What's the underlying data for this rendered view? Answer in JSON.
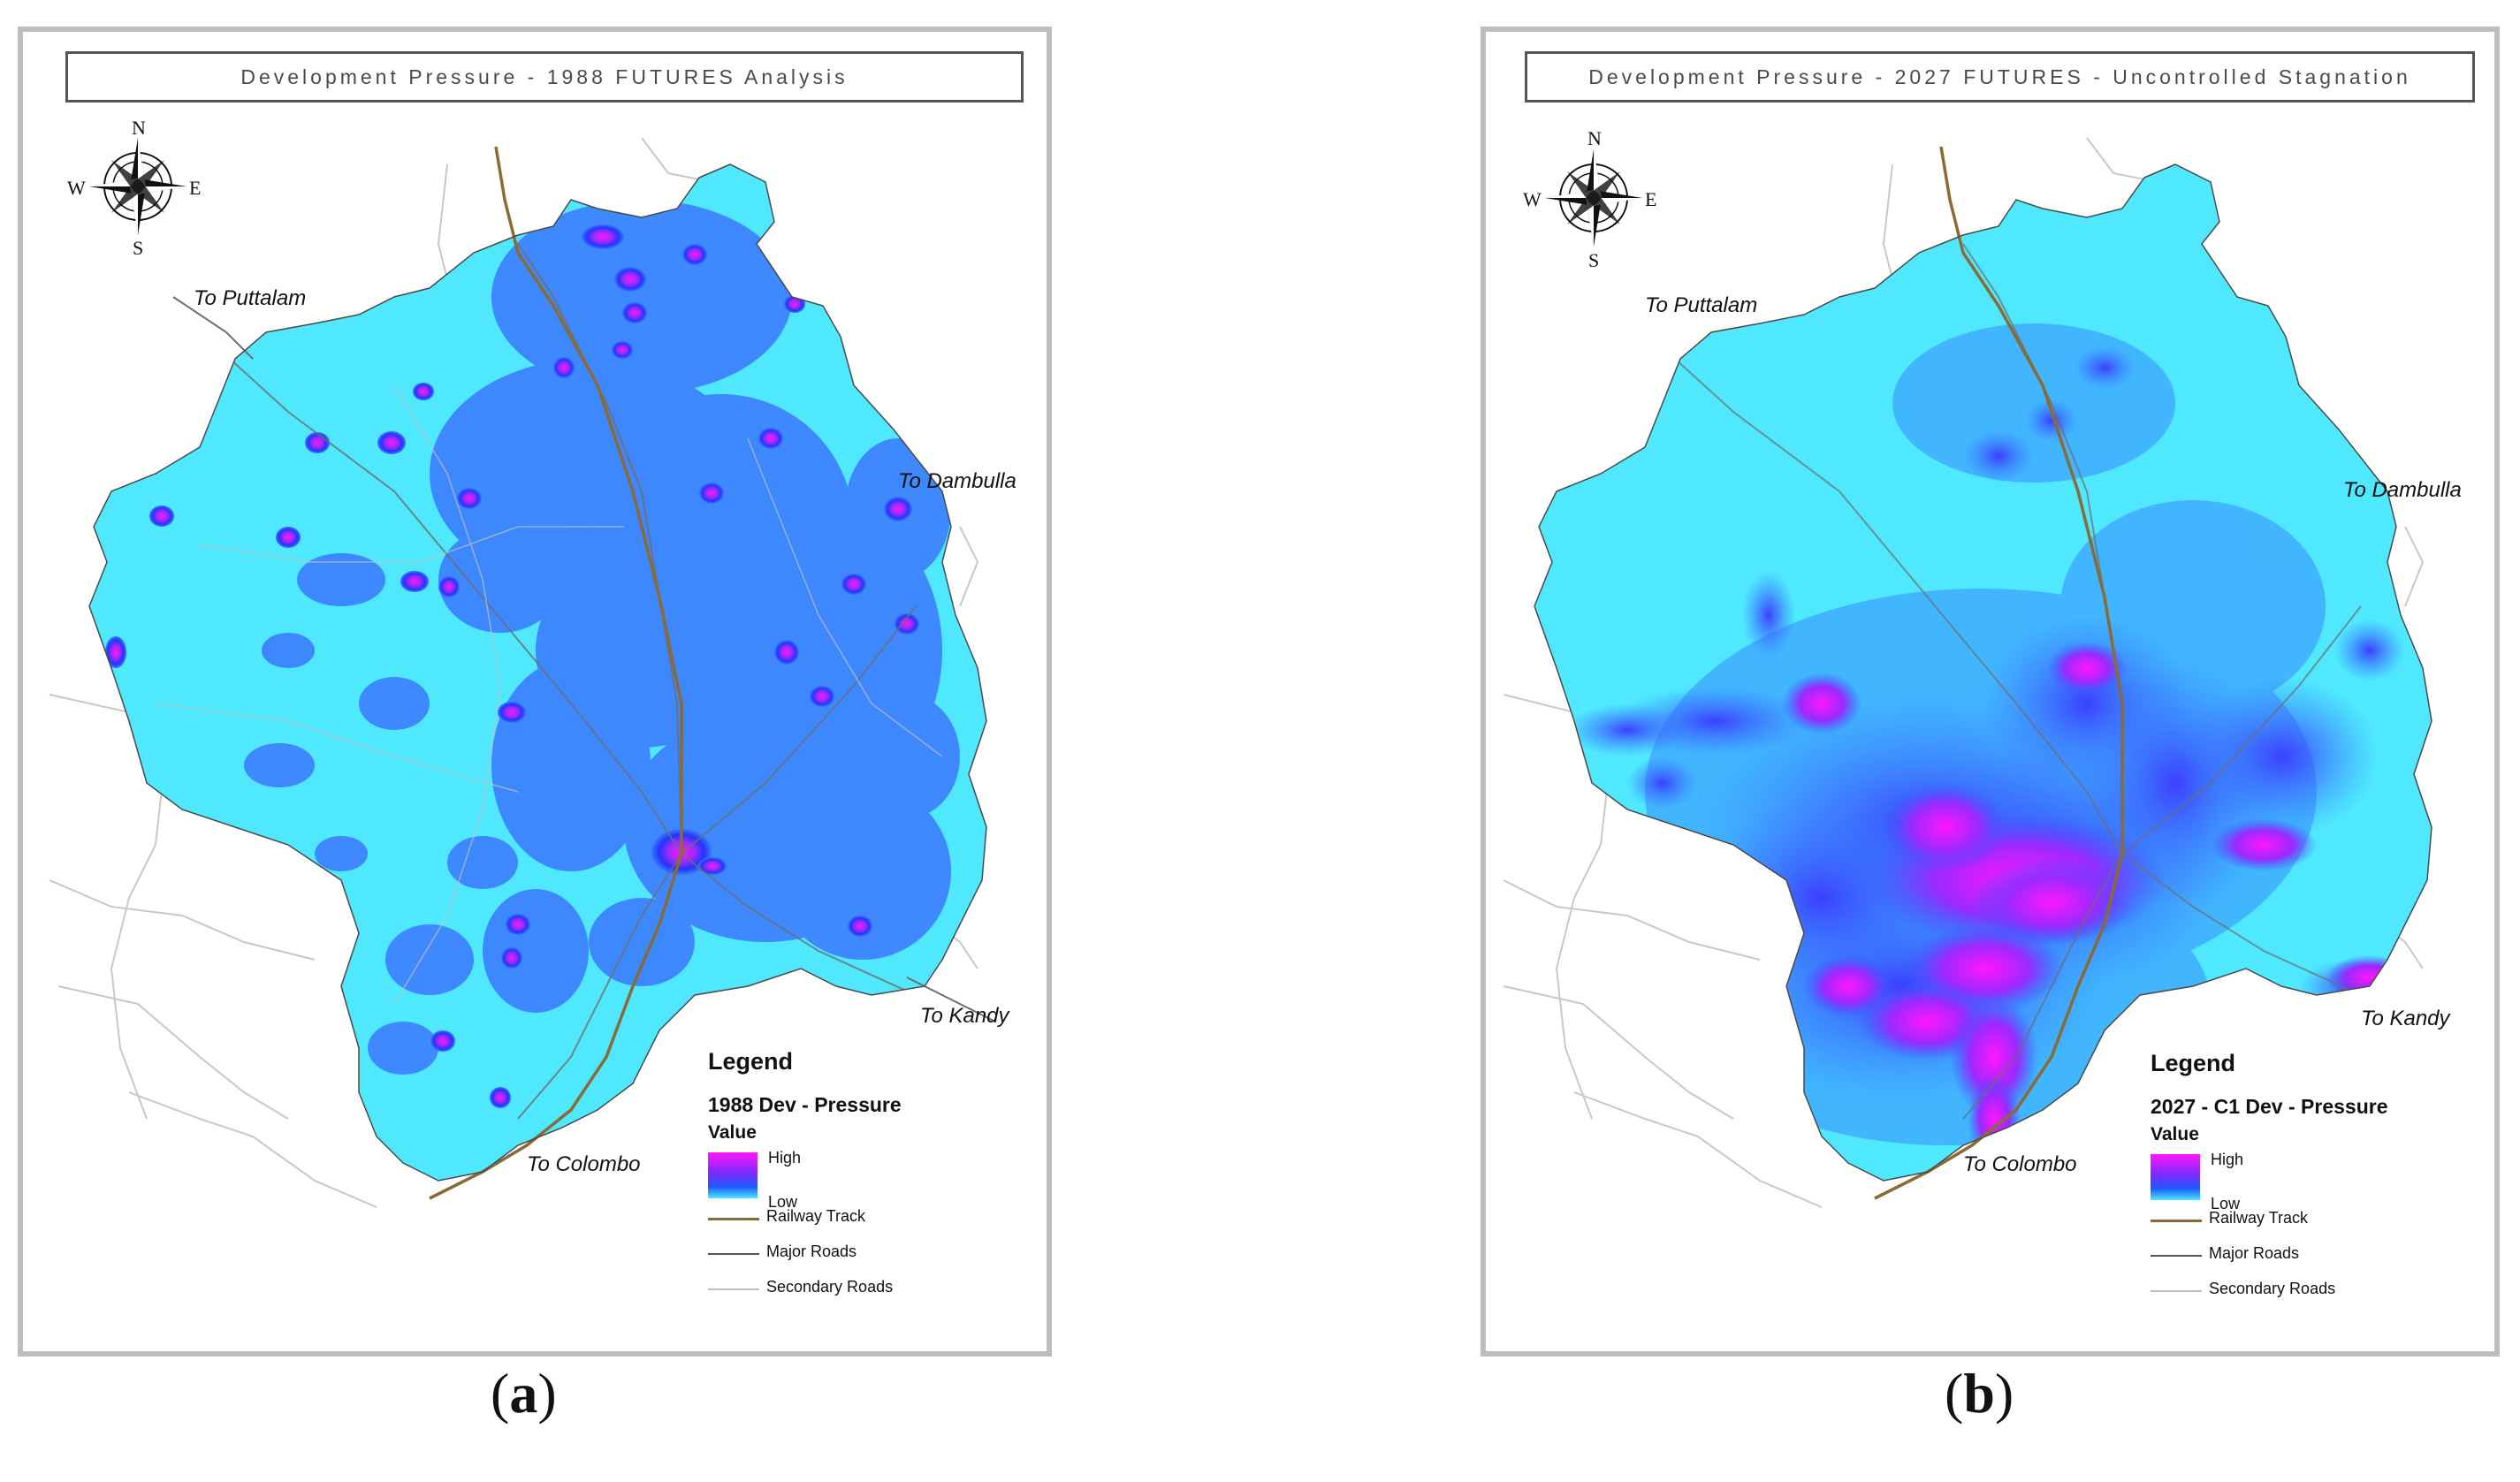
{
  "panels": {
    "a": {
      "title": "Development Pressure - 1988 FUTURES Analysis",
      "caption_letter": "a",
      "compass": {
        "n": "N",
        "s": "S",
        "e": "E",
        "w": "W"
      },
      "places": {
        "puttalam": "To Puttalam",
        "dambulla": "To Dambulla",
        "kandy": "To Kandy",
        "colombo": "To Colombo"
      },
      "legend": {
        "title": "Legend",
        "layer": "1988 Dev - Pressure",
        "value_label": "Value",
        "high": "High",
        "low": "Low",
        "railway": "Railway Track",
        "major_roads": "Major Roads",
        "secondary_roads": "Secondary Roads"
      }
    },
    "b": {
      "title": "Development Pressure - 2027 FUTURES - Uncontrolled Stagnation",
      "caption_letter": "b",
      "compass": {
        "n": "N",
        "s": "S",
        "e": "E",
        "w": "W"
      },
      "places": {
        "puttalam": "To Puttalam",
        "dambulla": "To Dambulla",
        "kandy": "To Kandy",
        "colombo": "To Colombo"
      },
      "legend": {
        "title": "Legend",
        "layer": "2027 - C1 Dev - Pressure",
        "value_label": "Value",
        "high": "High",
        "low": "Low",
        "railway": "Railway Track",
        "major_roads": "Major Roads",
        "secondary_roads": "Secondary Roads"
      }
    }
  },
  "colors": {
    "low": "#4fe8ff",
    "mid": "#3b78ff",
    "high": "#ff16ff",
    "railway": "#8a6a35",
    "major_road": "#555555",
    "secondary_road": "#bfbfbf"
  }
}
